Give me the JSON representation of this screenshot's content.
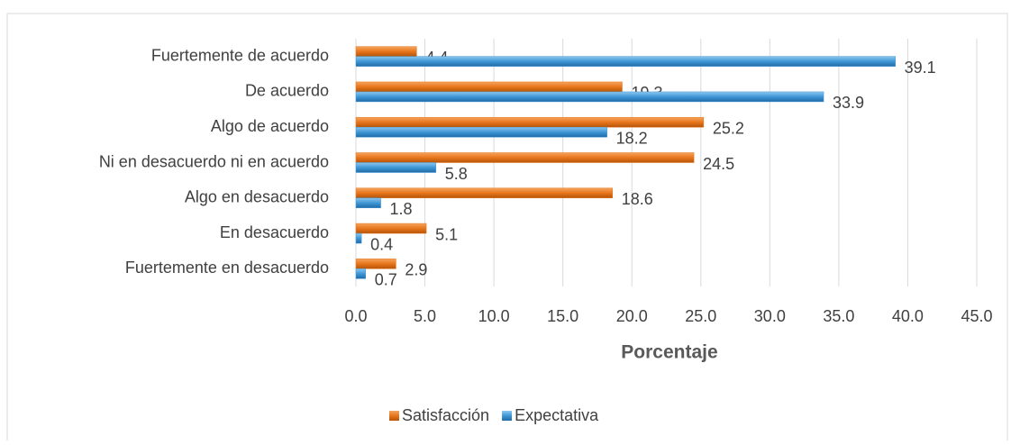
{
  "chart_data": {
    "type": "bar",
    "orientation": "horizontal",
    "x_axis_label": "Porcentaje",
    "categories": [
      "Fuertemente de acuerdo",
      "De acuerdo",
      "Algo de acuerdo",
      "Ni en desacuerdo ni en acuerdo",
      "Algo en desacuerdo",
      "En desacuerdo",
      "Fuertemente en desacuerdo"
    ],
    "series": [
      {
        "name": "Satisfacción",
        "color": "#e8761c",
        "values": [
          4.4,
          19.3,
          25.2,
          24.5,
          18.6,
          5.1,
          2.9
        ]
      },
      {
        "name": "Expectativa",
        "color": "#3f97d6",
        "values": [
          39.1,
          33.9,
          18.2,
          5.8,
          1.8,
          0.4,
          0.7
        ]
      }
    ],
    "xlim": [
      0,
      45
    ],
    "xticks": [
      {
        "value": 0,
        "label": "0.0"
      },
      {
        "value": 5,
        "label": "5.0"
      },
      {
        "value": 10,
        "label": "10.0"
      },
      {
        "value": 15,
        "label": "15.0"
      },
      {
        "value": 20,
        "label": "20.0"
      },
      {
        "value": 25,
        "label": "25.0"
      },
      {
        "value": 30,
        "label": "30.0"
      },
      {
        "value": 35,
        "label": "35.0"
      },
      {
        "value": 40,
        "label": "40.0"
      },
      {
        "value": 45,
        "label": "45.0"
      }
    ],
    "grid": true,
    "legend": "bottom"
  }
}
